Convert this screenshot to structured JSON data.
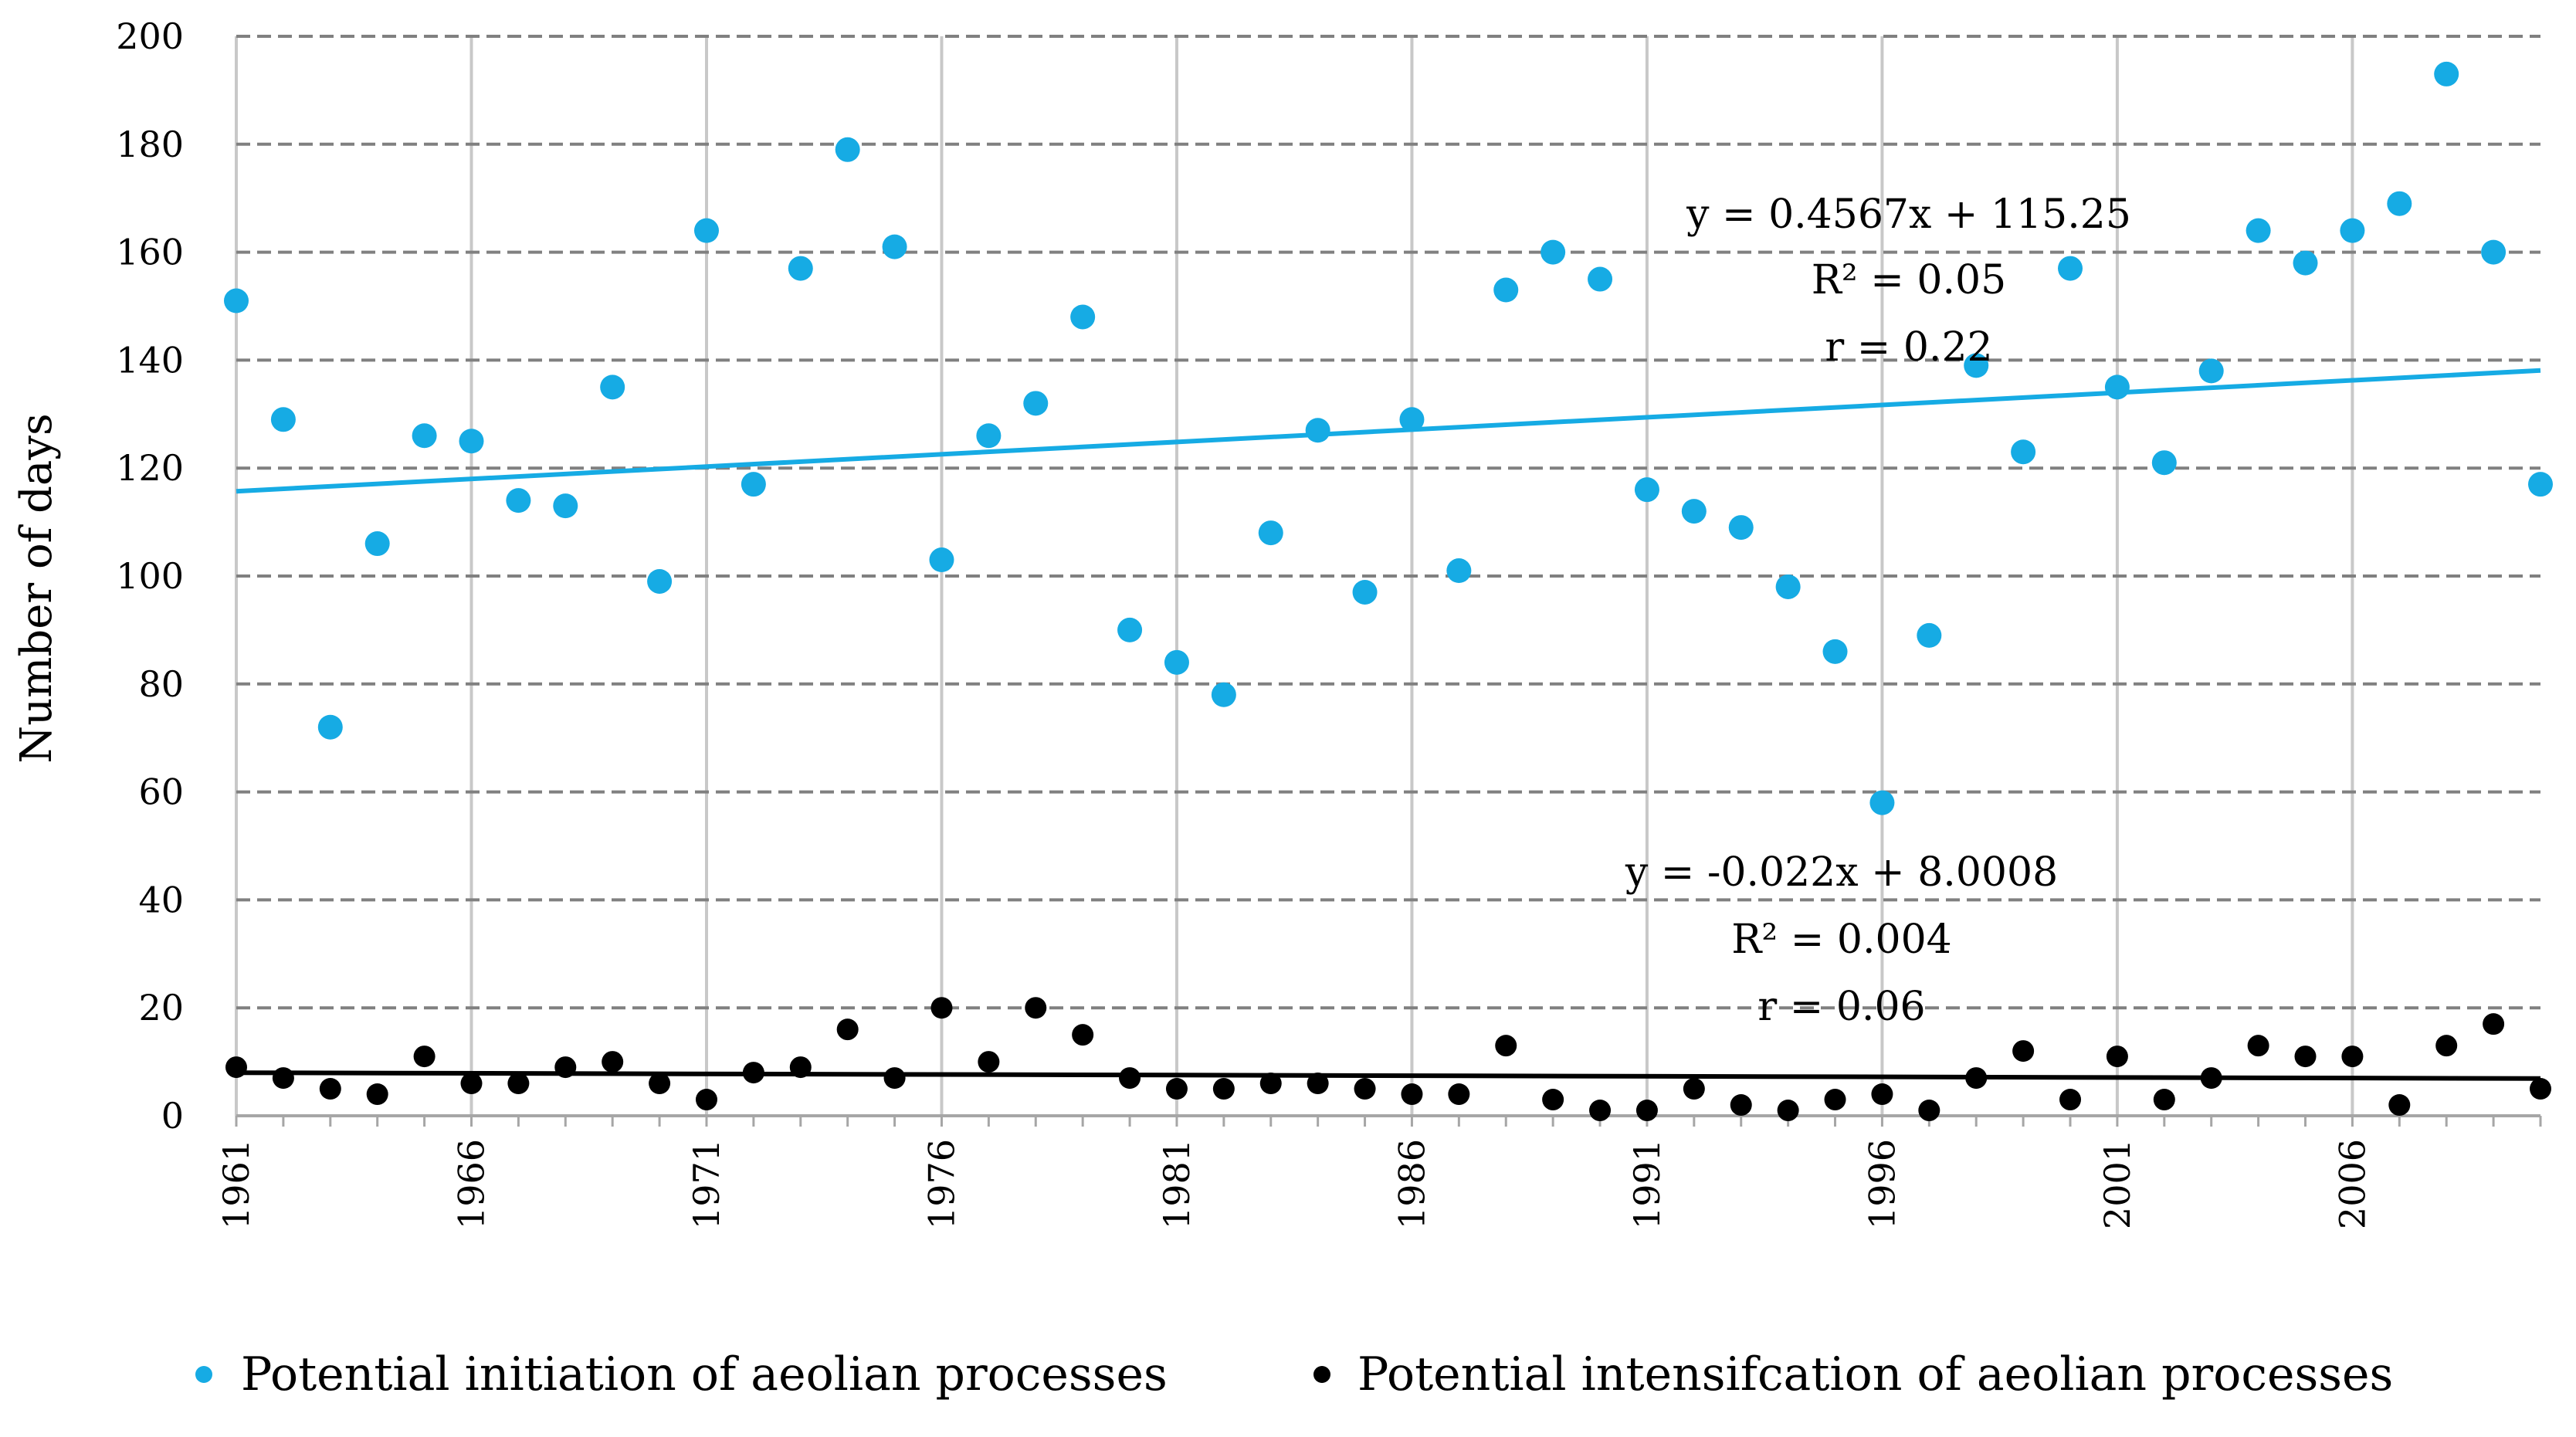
{
  "chart_data": {
    "type": "scatter",
    "title": "",
    "xlabel": "",
    "ylabel": "Number of days",
    "ylim": [
      0,
      200
    ],
    "yticks": [
      0,
      20,
      40,
      60,
      80,
      100,
      120,
      140,
      160,
      180,
      200
    ],
    "xlim": [
      1961,
      2010
    ],
    "xtick_labels": [
      "1961",
      "1966",
      "1971",
      "1976",
      "1981",
      "1986",
      "1991",
      "1996",
      "2001",
      "2006"
    ],
    "grid": true,
    "legend_position": "bottom",
    "series": [
      {
        "name": "Potential initiation of aeolian processes",
        "color": "#16ABE4",
        "x": [
          1961,
          1962,
          1963,
          1964,
          1965,
          1966,
          1967,
          1968,
          1969,
          1970,
          1971,
          1972,
          1973,
          1974,
          1975,
          1976,
          1977,
          1978,
          1979,
          1980,
          1981,
          1982,
          1983,
          1984,
          1985,
          1986,
          1987,
          1988,
          1989,
          1990,
          1991,
          1992,
          1993,
          1994,
          1995,
          1996,
          1997,
          1998,
          1999,
          2000,
          2001,
          2002,
          2003,
          2004,
          2005,
          2006,
          2007,
          2008,
          2009,
          2010
        ],
        "values": [
          151,
          129,
          72,
          106,
          126,
          125,
          114,
          113,
          135,
          99,
          164,
          117,
          157,
          179,
          161,
          103,
          126,
          132,
          148,
          90,
          84,
          78,
          108,
          127,
          97,
          129,
          101,
          153,
          160,
          155,
          116,
          112,
          109,
          98,
          86,
          58,
          89,
          139,
          123,
          157,
          135,
          121,
          138,
          164,
          158,
          164,
          169,
          193,
          160,
          117
        ],
        "trendline": {
          "slope": 0.4567,
          "intercept": 115.25
        },
        "annotation": [
          "y = 0.4567x + 115.25",
          "R² = 0.05",
          "r = 0.22"
        ]
      },
      {
        "name": "Potential intensifcation of aeolian processes",
        "color": "#000000",
        "x": [
          1961,
          1962,
          1963,
          1964,
          1965,
          1966,
          1967,
          1968,
          1969,
          1970,
          1971,
          1972,
          1973,
          1974,
          1975,
          1976,
          1977,
          1978,
          1979,
          1980,
          1981,
          1982,
          1983,
          1984,
          1985,
          1986,
          1987,
          1988,
          1989,
          1990,
          1991,
          1992,
          1993,
          1994,
          1995,
          1996,
          1997,
          1998,
          1999,
          2000,
          2001,
          2002,
          2003,
          2004,
          2005,
          2006,
          2007,
          2008,
          2009,
          2010
        ],
        "values": [
          9,
          7,
          5,
          4,
          11,
          6,
          6,
          9,
          10,
          6,
          3,
          8,
          9,
          16,
          7,
          20,
          10,
          20,
          15,
          7,
          5,
          5,
          6,
          6,
          5,
          4,
          4,
          13,
          3,
          1,
          1,
          5,
          2,
          1,
          3,
          4,
          1,
          7,
          12,
          3,
          11,
          3,
          7,
          13,
          11,
          11,
          2,
          13,
          17,
          5
        ],
        "trendline": {
          "slope": -0.022,
          "intercept": 8.0008
        },
        "annotation": [
          "y = -0.022x + 8.0008",
          "R² = 0.004",
          "r = 0.06"
        ]
      }
    ]
  }
}
